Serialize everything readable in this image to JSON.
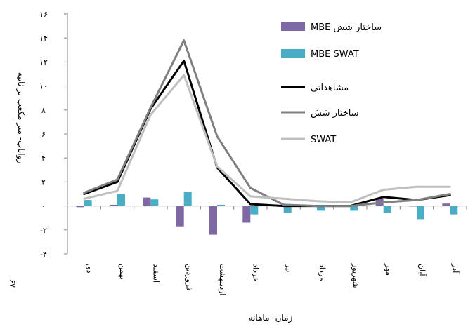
{
  "chart_data": {
    "type": "bar",
    "xlabel": "زمان- ماهانه",
    "ylabel": "رواناب- متر مکعب بر ثانیه",
    "ylim": [
      -4,
      16
    ],
    "yticks": [
      {
        "value": 16,
        "label": "۱۶"
      },
      {
        "value": 14,
        "label": "۱۴"
      },
      {
        "value": 12,
        "label": "۱۲"
      },
      {
        "value": 10,
        "label": "۱۰"
      },
      {
        "value": 8,
        "label": "۸"
      },
      {
        "value": 6,
        "label": "۶"
      },
      {
        "value": 4,
        "label": "۴"
      },
      {
        "value": 2,
        "label": "۲"
      },
      {
        "value": 0,
        "label": "۰"
      },
      {
        "value": -2,
        "label": "-۲"
      },
      {
        "value": -4,
        "label": "-۴"
      }
    ],
    "categories": [
      "دی",
      "بهمن",
      "اسفند",
      "فروردین",
      "اردیبهشت",
      "خرداد",
      "تیر",
      "مرداد",
      "شهریور",
      "مهر",
      "آبان",
      "آذر"
    ],
    "grid": false,
    "legend_position": "top-right",
    "corner_label": "۶۷",
    "series": [
      {
        "name": "MBE ساختار شش",
        "type": "bar",
        "color": "#7f68a6",
        "values": [
          -0.1,
          0.1,
          0.7,
          -1.7,
          -2.4,
          -1.4,
          0.0,
          0.0,
          0.0,
          0.6,
          0.0,
          0.2
        ]
      },
      {
        "name": "MBE SWAT",
        "type": "bar",
        "color": "#4bacc6",
        "values": [
          0.5,
          1.0,
          0.55,
          1.2,
          0.1,
          -0.7,
          -0.6,
          -0.4,
          -0.4,
          -0.6,
          -1.1,
          -0.7
        ]
      },
      {
        "name": "مشاهداتی",
        "type": "line",
        "color": "#000000",
        "width": 3,
        "values": [
          1.0,
          2.0,
          8.1,
          12.1,
          3.2,
          0.15,
          0.0,
          0.0,
          0.0,
          0.75,
          0.5,
          0.9
        ]
      },
      {
        "name": "ساختار شش",
        "type": "line",
        "color": "#7f7f7f",
        "width": 3,
        "values": [
          1.1,
          2.2,
          8.2,
          13.8,
          5.8,
          1.5,
          0.1,
          0.0,
          0.0,
          0.3,
          0.5,
          1.0
        ]
      },
      {
        "name": "SWAT",
        "type": "line",
        "color": "#bfbfbf",
        "width": 3,
        "values": [
          0.6,
          1.25,
          7.6,
          10.9,
          3.3,
          0.8,
          0.6,
          0.4,
          0.3,
          1.35,
          1.6,
          1.6
        ]
      }
    ]
  }
}
